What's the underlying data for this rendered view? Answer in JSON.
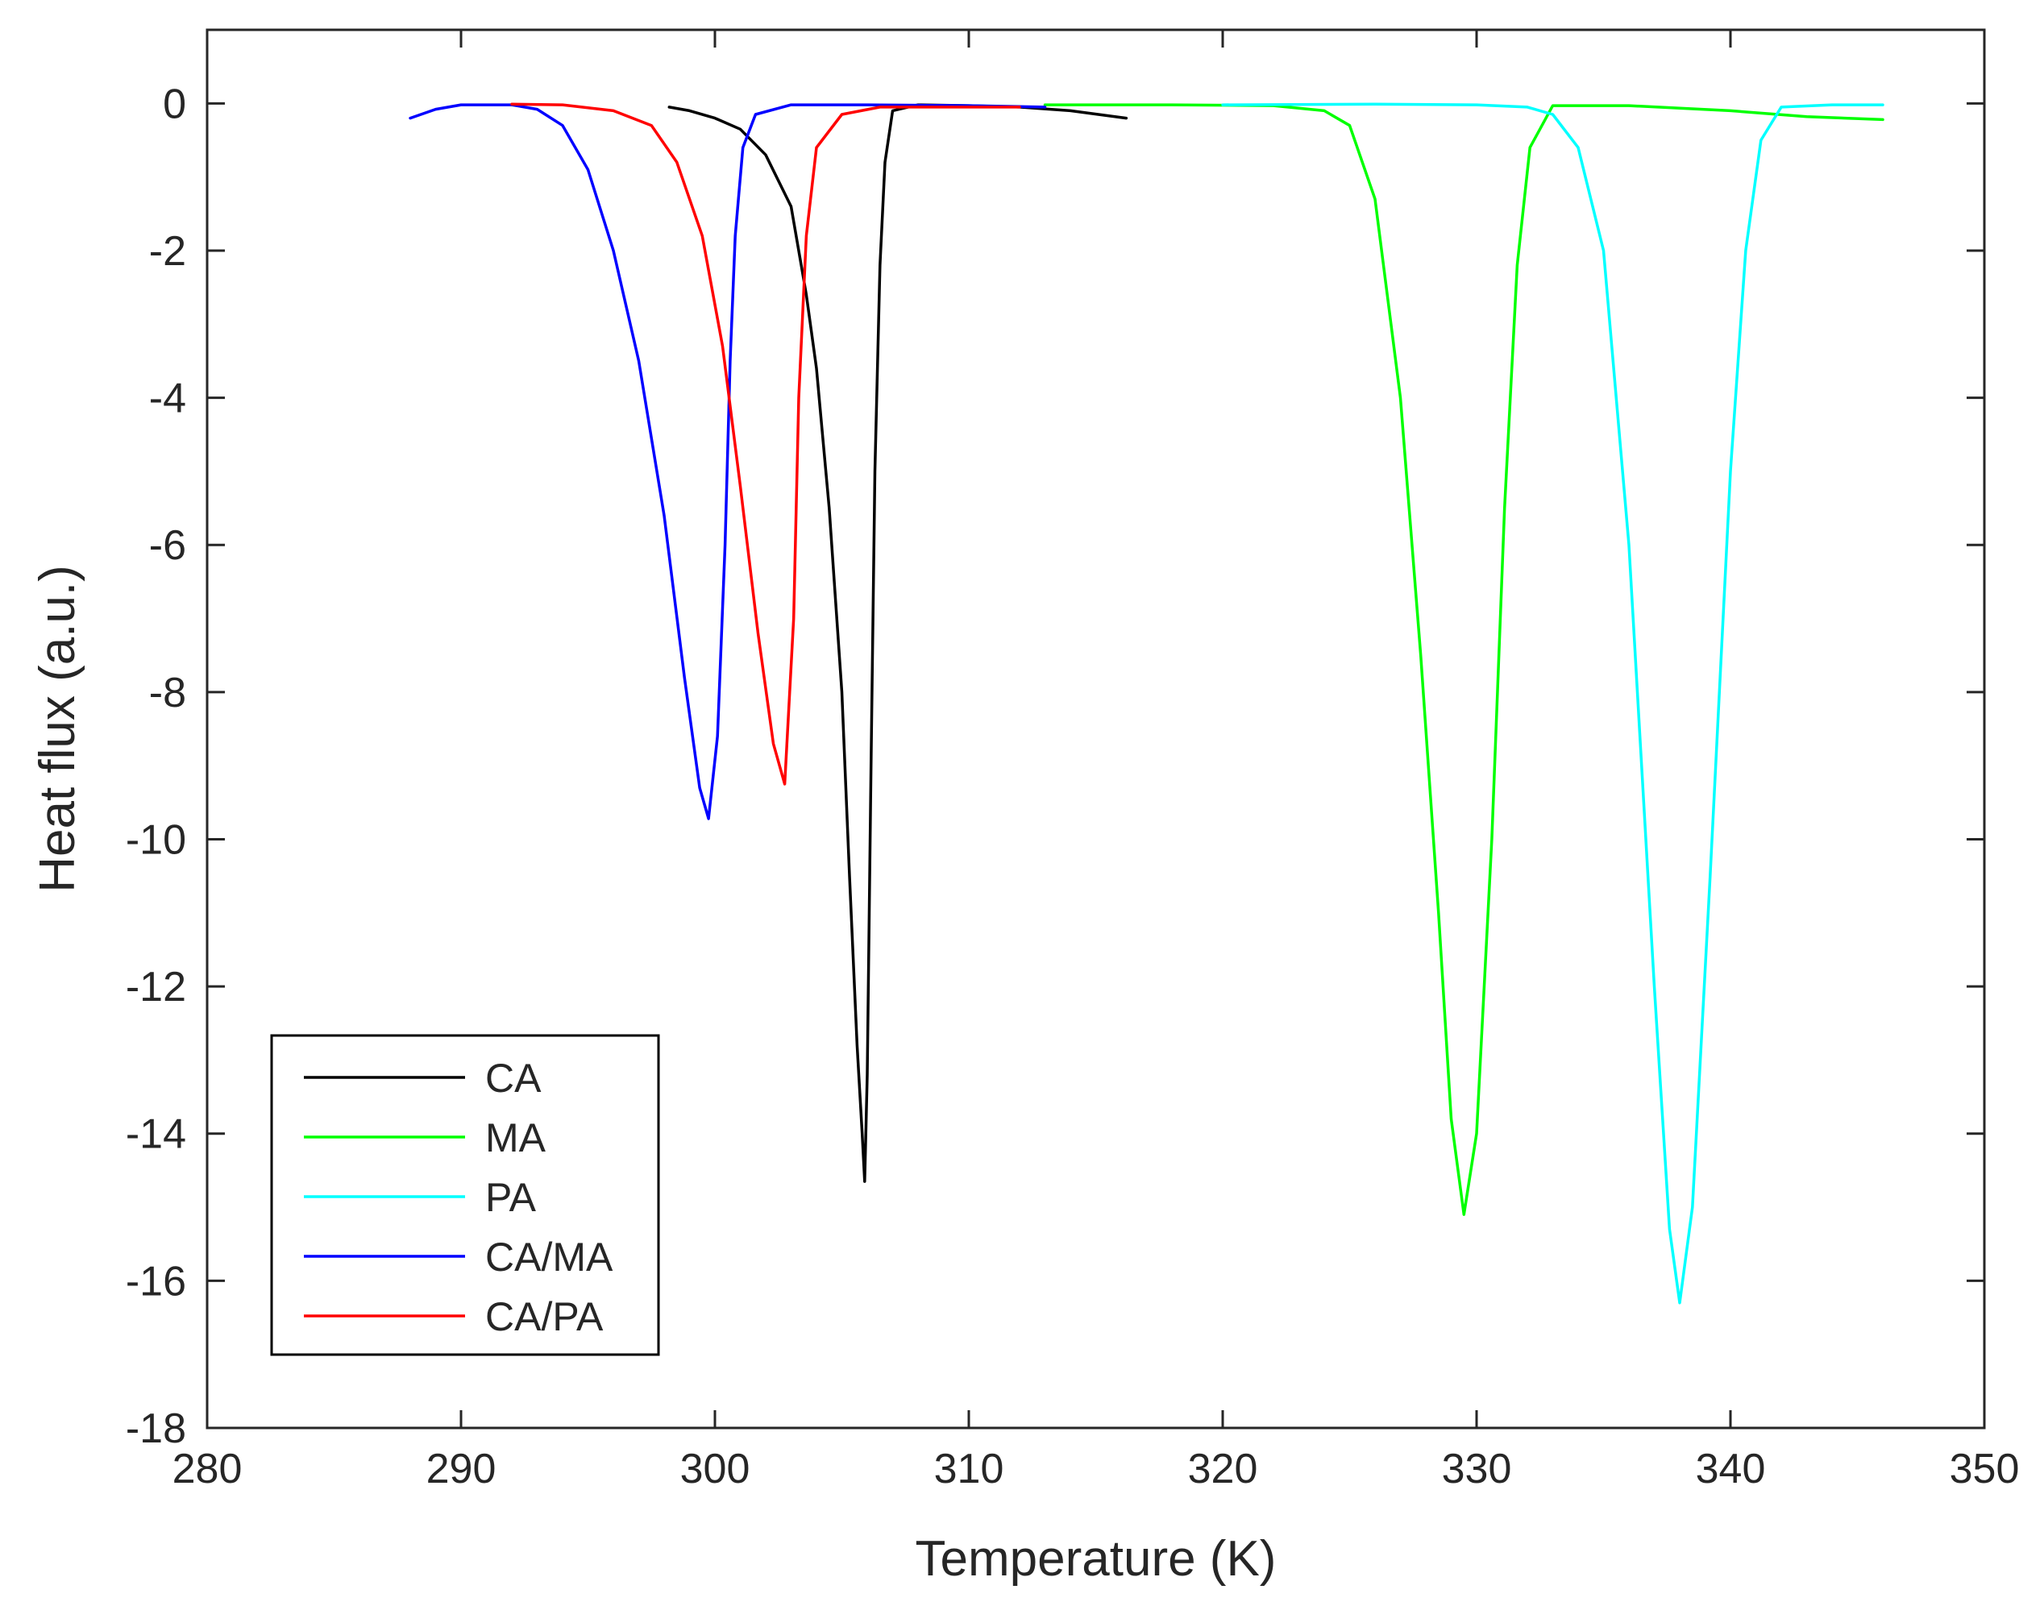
{
  "chart_data": {
    "type": "line",
    "title": "",
    "xlabel": "Temperature (K)",
    "ylabel": "Heat flux (a.u.)",
    "xlim": [
      280,
      350
    ],
    "ylim": [
      -18,
      1
    ],
    "xticks": [
      280,
      290,
      300,
      310,
      320,
      330,
      340,
      350
    ],
    "yticks": [
      0,
      -2,
      -4,
      -6,
      -8,
      -10,
      -12,
      -14,
      -16,
      -18
    ],
    "grid": false,
    "legend_position": "bottom-left",
    "series": [
      {
        "name": "CA",
        "color": "#000000",
        "points": [
          [
            298.2,
            -0.05
          ],
          [
            299.0,
            -0.1
          ],
          [
            300.0,
            -0.2
          ],
          [
            301.0,
            -0.35
          ],
          [
            302.0,
            -0.7
          ],
          [
            303.0,
            -1.4
          ],
          [
            303.6,
            -2.6
          ],
          [
            304.0,
            -3.6
          ],
          [
            304.5,
            -5.5
          ],
          [
            305.0,
            -8.0
          ],
          [
            305.3,
            -10.5
          ],
          [
            305.6,
            -12.8
          ],
          [
            305.8,
            -14.0
          ],
          [
            305.9,
            -14.65
          ],
          [
            306.0,
            -13.2
          ],
          [
            306.15,
            -9.0
          ],
          [
            306.3,
            -5.0
          ],
          [
            306.5,
            -2.2
          ],
          [
            306.7,
            -0.8
          ],
          [
            307.0,
            -0.1
          ],
          [
            308.0,
            -0.02
          ],
          [
            310.0,
            -0.03
          ],
          [
            312.0,
            -0.05
          ],
          [
            314.0,
            -0.1
          ],
          [
            316.2,
            -0.2
          ]
        ]
      },
      {
        "name": "MA",
        "color": "#00ff00",
        "points": [
          [
            313.0,
            -0.02
          ],
          [
            318.0,
            -0.02
          ],
          [
            322.0,
            -0.03
          ],
          [
            324.0,
            -0.1
          ],
          [
            325.0,
            -0.3
          ],
          [
            326.0,
            -1.3
          ],
          [
            327.0,
            -4.0
          ],
          [
            327.8,
            -7.5
          ],
          [
            328.5,
            -11.0
          ],
          [
            329.0,
            -13.8
          ],
          [
            329.5,
            -15.1
          ],
          [
            330.0,
            -14.0
          ],
          [
            330.6,
            -10.0
          ],
          [
            331.1,
            -5.5
          ],
          [
            331.6,
            -2.2
          ],
          [
            332.1,
            -0.6
          ],
          [
            333.0,
            -0.03
          ],
          [
            336.0,
            -0.03
          ],
          [
            340.0,
            -0.1
          ],
          [
            343.0,
            -0.18
          ],
          [
            346.0,
            -0.22
          ]
        ]
      },
      {
        "name": "PA",
        "color": "#00ffff",
        "points": [
          [
            320.0,
            -0.02
          ],
          [
            326.0,
            -0.01
          ],
          [
            330.0,
            -0.02
          ],
          [
            332.0,
            -0.05
          ],
          [
            333.0,
            -0.15
          ],
          [
            334.0,
            -0.6
          ],
          [
            335.0,
            -2.0
          ],
          [
            336.0,
            -6.0
          ],
          [
            337.0,
            -12.0
          ],
          [
            337.6,
            -15.3
          ],
          [
            338.0,
            -16.3
          ],
          [
            338.5,
            -15.0
          ],
          [
            339.2,
            -10.5
          ],
          [
            340.0,
            -5.0
          ],
          [
            340.6,
            -2.0
          ],
          [
            341.2,
            -0.5
          ],
          [
            342.0,
            -0.05
          ],
          [
            344.0,
            -0.02
          ],
          [
            346.0,
            -0.02
          ]
        ]
      },
      {
        "name": "CA/MA",
        "color": "#0000ff",
        "points": [
          [
            288.0,
            -0.2
          ],
          [
            289.0,
            -0.08
          ],
          [
            290.0,
            -0.02
          ],
          [
            292.0,
            -0.02
          ],
          [
            293.0,
            -0.08
          ],
          [
            294.0,
            -0.3
          ],
          [
            295.0,
            -0.9
          ],
          [
            296.0,
            -2.0
          ],
          [
            297.0,
            -3.5
          ],
          [
            298.0,
            -5.6
          ],
          [
            298.8,
            -7.8
          ],
          [
            299.4,
            -9.3
          ],
          [
            299.75,
            -9.72
          ],
          [
            300.1,
            -8.6
          ],
          [
            300.4,
            -6.0
          ],
          [
            300.6,
            -3.5
          ],
          [
            300.8,
            -1.8
          ],
          [
            301.1,
            -0.6
          ],
          [
            301.6,
            -0.15
          ],
          [
            303.0,
            -0.02
          ],
          [
            306.0,
            -0.02
          ],
          [
            310.0,
            -0.03
          ],
          [
            313.0,
            -0.05
          ]
        ]
      },
      {
        "name": "CA/PA",
        "color": "#ff0000",
        "points": [
          [
            292.0,
            -0.01
          ],
          [
            294.0,
            -0.02
          ],
          [
            296.0,
            -0.1
          ],
          [
            297.5,
            -0.3
          ],
          [
            298.5,
            -0.8
          ],
          [
            299.5,
            -1.8
          ],
          [
            300.3,
            -3.3
          ],
          [
            301.0,
            -5.2
          ],
          [
            301.7,
            -7.2
          ],
          [
            302.3,
            -8.7
          ],
          [
            302.75,
            -9.25
          ],
          [
            303.1,
            -7.0
          ],
          [
            303.3,
            -4.0
          ],
          [
            303.6,
            -1.8
          ],
          [
            304.0,
            -0.6
          ],
          [
            305.0,
            -0.15
          ],
          [
            306.5,
            -0.05
          ],
          [
            310.0,
            -0.05
          ],
          [
            312.0,
            -0.05
          ]
        ]
      }
    ]
  }
}
